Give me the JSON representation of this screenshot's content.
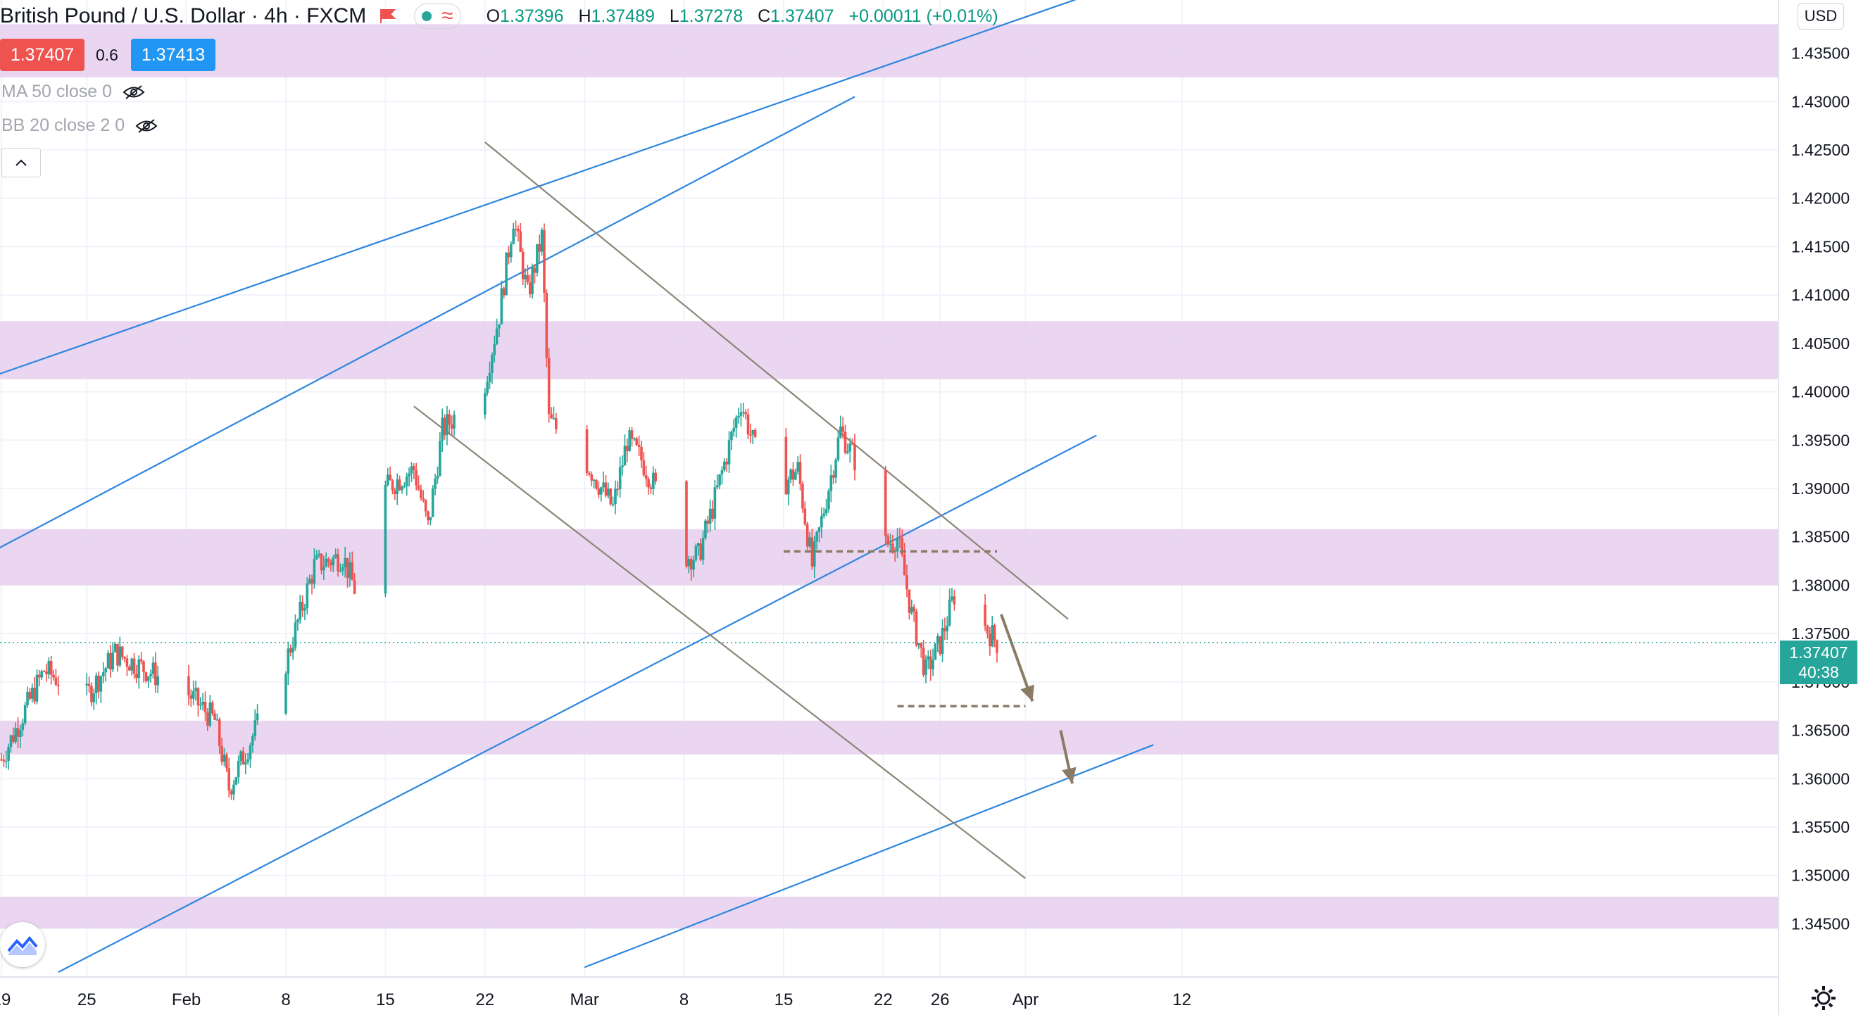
{
  "header": {
    "symbol_title": "British Pound / U.S. Dollar",
    "interval": "4h",
    "exchange": "FXCM",
    "ohlc": {
      "open_key": "O",
      "open": "1.37396",
      "high_key": "H",
      "high": "1.37489",
      "low_key": "L",
      "low": "1.37278",
      "close_key": "C",
      "close": "1.37407",
      "change": "+0.00011 (+0.01%)"
    }
  },
  "trade": {
    "sell": "1.37407",
    "spread": "0.6",
    "buy": "1.37413"
  },
  "indicators": [
    {
      "label": "MA 50 close 0"
    },
    {
      "label": "BB 20 close 2 0"
    }
  ],
  "currency": "USD",
  "last_price": {
    "value": "1.37407",
    "countdown": "40:38"
  },
  "colors": {
    "up": "#26a69a",
    "down": "#ef5350",
    "zone": "#e6cfee",
    "channel": "#2e86de",
    "trend": "#8d8576",
    "annotation": "#8b7b65"
  },
  "chart_data": {
    "type": "candlestick",
    "title": "British Pound / U.S. Dollar 4h FXCM",
    "ylim": [
      1.3395,
      1.4405
    ],
    "y_ticks": [
      "1.43500",
      "1.43000",
      "1.42500",
      "1.42000",
      "1.41500",
      "1.41000",
      "1.40500",
      "1.40000",
      "1.39500",
      "1.39000",
      "1.38500",
      "1.38000",
      "1.37500",
      "1.37000",
      "1.36500",
      "1.36000",
      "1.35500",
      "1.35000",
      "1.34500"
    ],
    "x_ticks": [
      "19",
      "25",
      "Feb",
      "8",
      "15",
      "22",
      "Mar",
      "8",
      "15",
      "22",
      "26",
      "Apr",
      "12"
    ],
    "series": [
      {
        "name": "GBPUSD",
        "anchors": [
          {
            "t": "Jan 19",
            "price": 1.362
          },
          {
            "t": "Jan 22",
            "price": 1.3712
          },
          {
            "t": "Jan 25",
            "price": 1.3685
          },
          {
            "t": "Jan 27",
            "price": 1.373
          },
          {
            "t": "Feb 1",
            "price": 1.369
          },
          {
            "t": "Feb 3",
            "price": 1.366
          },
          {
            "t": "Feb 4",
            "price": 1.359
          },
          {
            "t": "Feb 8",
            "price": 1.372
          },
          {
            "t": "Feb 10",
            "price": 1.382
          },
          {
            "t": "Feb 12",
            "price": 1.383
          },
          {
            "t": "Feb 13",
            "price": 1.379
          },
          {
            "t": "Feb 15",
            "price": 1.39
          },
          {
            "t": "Feb 17",
            "price": 1.392
          },
          {
            "t": "Feb 18",
            "price": 1.386
          },
          {
            "t": "Feb 19",
            "price": 1.396
          },
          {
            "t": "Feb 22",
            "price": 1.401
          },
          {
            "t": "Feb 23",
            "price": 1.408
          },
          {
            "t": "Feb 24",
            "price": 1.418
          },
          {
            "t": "Feb 25",
            "price": 1.41
          },
          {
            "t": "Feb 26",
            "price": 1.416
          },
          {
            "t": "Feb 26 PM",
            "price": 1.397
          },
          {
            "t": "Mar 1",
            "price": 1.393
          },
          {
            "t": "Mar 3",
            "price": 1.388
          },
          {
            "t": "Mar 4",
            "price": 1.395
          },
          {
            "t": "Mar 5",
            "price": 1.393
          },
          {
            "t": "Mar 7",
            "price": 1.387
          },
          {
            "t": "Mar 8",
            "price": 1.383
          },
          {
            "t": "Mar 9",
            "price": 1.383
          },
          {
            "t": "Mar 10",
            "price": 1.388
          },
          {
            "t": "Mar 12",
            "price": 1.399
          },
          {
            "t": "Mar 14",
            "price": 1.389
          },
          {
            "t": "Mar 16",
            "price": 1.392
          },
          {
            "t": "Mar 17",
            "price": 1.382
          },
          {
            "t": "Mar 18",
            "price": 1.389
          },
          {
            "t": "Mar 19",
            "price": 1.396
          },
          {
            "t": "Mar 20",
            "price": 1.393
          },
          {
            "t": "Mar 21",
            "price": 1.388
          },
          {
            "t": "Mar 22",
            "price": 1.384
          },
          {
            "t": "Mar 23",
            "price": 1.385
          },
          {
            "t": "Mar 24",
            "price": 1.377
          },
          {
            "t": "Mar 25",
            "price": 1.371
          },
          {
            "t": "Mar 26",
            "price": 1.374
          },
          {
            "t": "Mar 27",
            "price": 1.379
          },
          {
            "t": "Mar 28",
            "price": 1.383
          },
          {
            "t": "Mar 29",
            "price": 1.376
          },
          {
            "t": "Mar 30",
            "price": 1.3741
          }
        ]
      }
    ],
    "zones": [
      {
        "from": 1.4325,
        "to": 1.438
      },
      {
        "from": 1.4013,
        "to": 1.4073
      },
      {
        "from": 1.38,
        "to": 1.3858
      },
      {
        "from": 1.3625,
        "to": 1.366
      },
      {
        "from": 1.3445,
        "to": 1.3478
      }
    ],
    "trendlines": [
      {
        "kind": "channel",
        "from": {
          "t": "Jan 18",
          "price": 1.4014
        },
        "to": {
          "t": "Apr 6",
          "price": 1.4413
        }
      },
      {
        "kind": "channel",
        "from": {
          "t": "Jan 18",
          "price": 1.3832
        },
        "to": {
          "t": "Mar 20",
          "price": 1.4305
        }
      },
      {
        "kind": "channel",
        "from": {
          "t": "Jan 23",
          "price": 1.34
        },
        "to": {
          "t": "Apr 6",
          "price": 1.3955
        }
      },
      {
        "kind": "channel",
        "from": {
          "t": "Mar 1",
          "price": 1.3405
        },
        "to": {
          "t": "Apr 10",
          "price": 1.3635
        }
      },
      {
        "kind": "trend",
        "from": {
          "t": "Feb 22",
          "price": 1.4258
        },
        "to": {
          "t": "Apr 4",
          "price": 1.3765
        }
      },
      {
        "kind": "trend",
        "from": {
          "t": "Feb 17",
          "price": 1.3985
        },
        "to": {
          "t": "Apr 1",
          "price": 1.3497
        }
      }
    ],
    "levels": [
      {
        "price": 1.3835,
        "from": "Mar 15",
        "to": "Mar 30"
      },
      {
        "price": 1.3675,
        "from": "Mar 23",
        "to": "Apr 1"
      }
    ],
    "annotations": [
      "arrow-down",
      "arrow-down"
    ]
  }
}
